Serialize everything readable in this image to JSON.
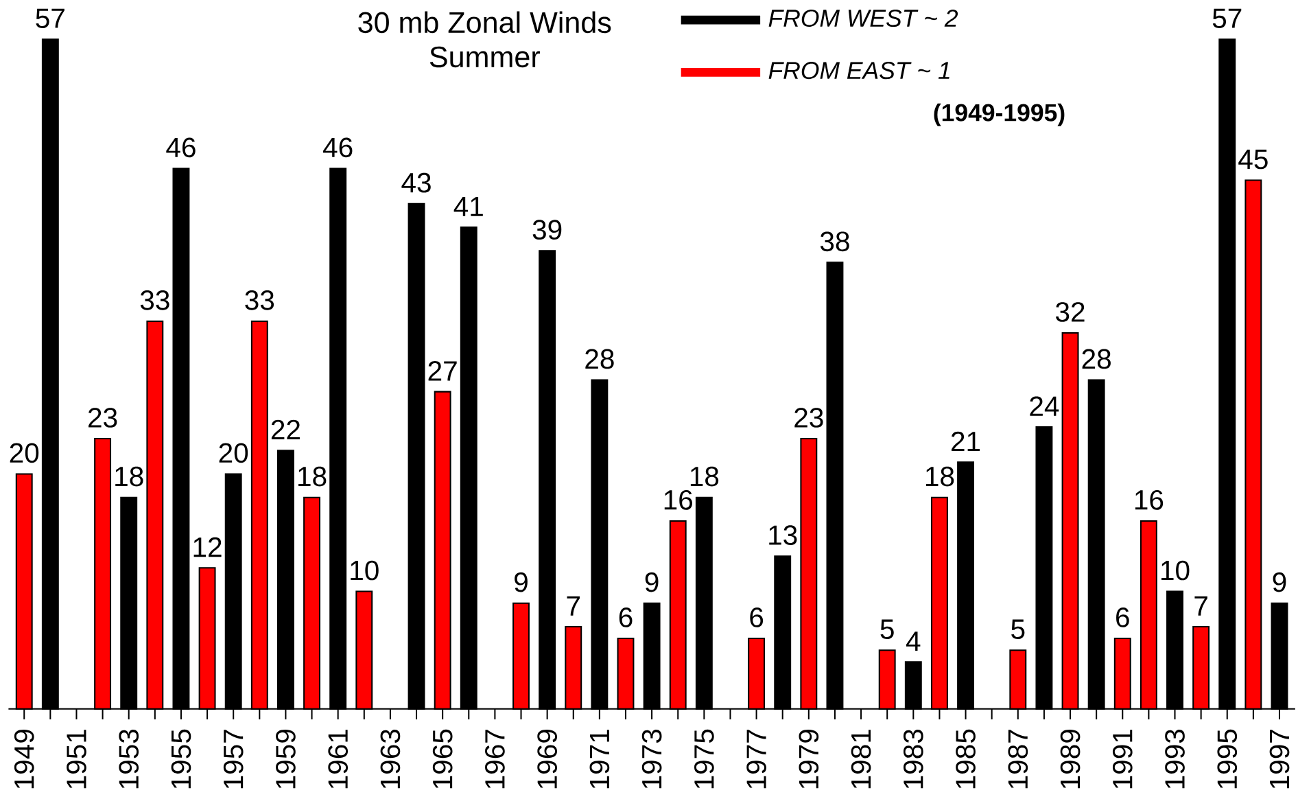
{
  "chart_data": {
    "type": "bar",
    "title": "30 mb Zonal Winds",
    "subtitle": "Summer",
    "categories": [
      "1949",
      null,
      "1951",
      null,
      "1953",
      null,
      "1955",
      null,
      "1957",
      null,
      "1959",
      null,
      "1961",
      null,
      "1963",
      null,
      "1965",
      null,
      "1967",
      null,
      "1969",
      null,
      "1971",
      null,
      "1973",
      null,
      "1975",
      null,
      "1977",
      null,
      "1979",
      null,
      "1981",
      null,
      "1983",
      null,
      "1985",
      null,
      "1987",
      null,
      "1989",
      null,
      "1991",
      null,
      "1993",
      null,
      "1995",
      null,
      "1997"
    ],
    "series": [
      {
        "name": "FROM WEST ~ 2",
        "color": "#000000",
        "values": [
          null,
          57,
          null,
          null,
          18,
          null,
          46,
          null,
          20,
          null,
          22,
          null,
          46,
          null,
          null,
          43,
          null,
          41,
          null,
          null,
          39,
          null,
          28,
          null,
          9,
          null,
          18,
          null,
          null,
          13,
          null,
          38,
          null,
          null,
          4,
          null,
          21,
          null,
          null,
          24,
          null,
          28,
          null,
          null,
          10,
          null,
          57,
          null,
          9
        ]
      },
      {
        "name": "FROM EAST ~ 1",
        "color": "#ff0000",
        "values": [
          20,
          null,
          null,
          23,
          null,
          33,
          null,
          12,
          null,
          33,
          null,
          18,
          null,
          10,
          null,
          null,
          27,
          null,
          null,
          9,
          null,
          7,
          null,
          6,
          null,
          16,
          null,
          null,
          6,
          null,
          23,
          null,
          null,
          5,
          null,
          18,
          null,
          null,
          5,
          null,
          32,
          null,
          6,
          16,
          null,
          7,
          null,
          45,
          null
        ]
      }
    ],
    "data_labels": true,
    "legend": "top",
    "tick_labels": "x",
    "annotations": [
      "(1949-1995)"
    ]
  }
}
